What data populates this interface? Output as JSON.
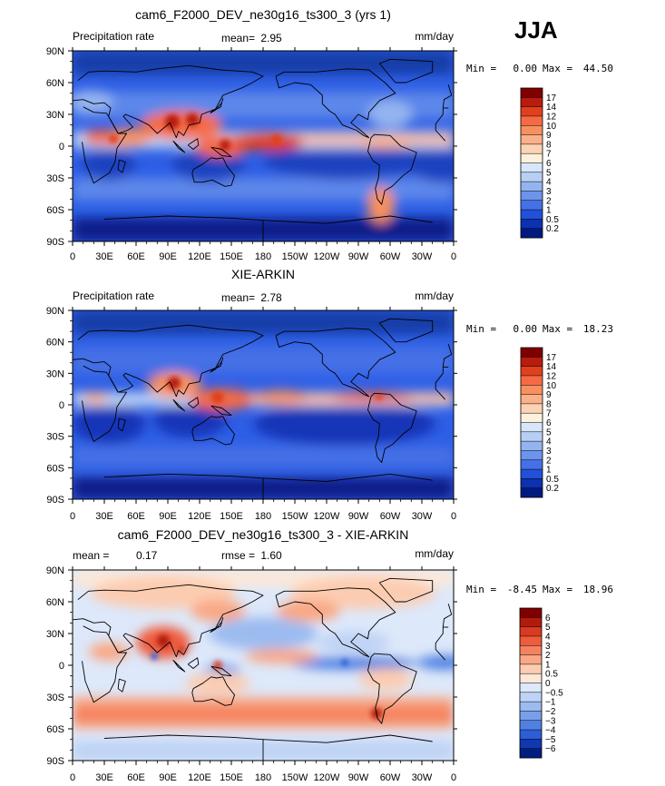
{
  "season": "JJA",
  "chart_data": [
    {
      "type": "heatmap",
      "title": "cam6_F2000_DEV_ne30g16_ts300_3 (yrs 1)",
      "left_label": "Precipitation rate",
      "stat1_label": "mean=",
      "stat1_value": "2.95",
      "stat2_label": "",
      "stat2_value": "",
      "units": "mm/day",
      "min_label": "Min =",
      "min_value": "0.00",
      "max_label": "Max =",
      "max_value": "44.50",
      "x_ticks": [
        "0",
        "30E",
        "60E",
        "90E",
        "120E",
        "150E",
        "180",
        "150W",
        "120W",
        "90W",
        "60W",
        "30W",
        "0"
      ],
      "y_ticks": [
        "90N",
        "60N",
        "30N",
        "0",
        "30S",
        "60S",
        "90S"
      ],
      "levels": [
        "17",
        "14",
        "12",
        "10",
        "9",
        "8",
        "7",
        "6",
        "5",
        "4",
        "3",
        "2",
        "1",
        "0.5",
        "0.2"
      ],
      "colors": [
        "#800000",
        "#b81c0c",
        "#e0401c",
        "#f56a45",
        "#f7905f",
        "#fab088",
        "#fcd2b4",
        "#fdf0dc",
        "#d7e6fa",
        "#b8cff5",
        "#94b4f0",
        "#6d93eb",
        "#4570e6",
        "#2250d8",
        "#0c32b0",
        "#001a80"
      ],
      "background": "#2d5ee5"
    },
    {
      "type": "heatmap",
      "title": "XIE-ARKIN",
      "left_label": "Precipitation rate",
      "stat1_label": "mean=",
      "stat1_value": "2.78",
      "stat2_label": "",
      "stat2_value": "",
      "units": "mm/day",
      "min_label": "Min =",
      "min_value": "0.00",
      "max_label": "Max =",
      "max_value": "18.23",
      "x_ticks": [
        "0",
        "30E",
        "60E",
        "90E",
        "120E",
        "150E",
        "180",
        "150W",
        "120W",
        "90W",
        "60W",
        "30W",
        "0"
      ],
      "y_ticks": [
        "90N",
        "60N",
        "30N",
        "0",
        "30S",
        "60S",
        "90S"
      ],
      "levels": [
        "17",
        "14",
        "12",
        "10",
        "9",
        "8",
        "7",
        "6",
        "5",
        "4",
        "3",
        "2",
        "1",
        "0.5",
        "0.2"
      ],
      "colors": [
        "#800000",
        "#b81c0c",
        "#e0401c",
        "#f56a45",
        "#f7905f",
        "#fab088",
        "#fcd2b4",
        "#fdf0dc",
        "#d7e6fa",
        "#b8cff5",
        "#94b4f0",
        "#6d93eb",
        "#4570e6",
        "#2250d8",
        "#0c32b0",
        "#001a80"
      ],
      "background": "#2d5ee5"
    },
    {
      "type": "heatmap",
      "title": "cam6_F2000_DEV_ne30g16_ts300_3 - XIE-ARKIN",
      "left_label": "",
      "stat1_label": "mean =",
      "stat1_value": "0.17",
      "stat2_label": "rmse =",
      "stat2_value": "1.60",
      "units": "mm/day",
      "min_label": "Min =",
      "min_value": "-8.45",
      "max_label": "Max =",
      "max_value": "18.96",
      "x_ticks": [
        "0",
        "30E",
        "60E",
        "90E",
        "120E",
        "150E",
        "180",
        "150W",
        "120W",
        "90W",
        "60W",
        "30W",
        "0"
      ],
      "y_ticks": [
        "90N",
        "60N",
        "30N",
        "0",
        "30S",
        "60S",
        "90S"
      ],
      "levels": [
        "6",
        "5",
        "4",
        "3",
        "2",
        "1",
        "0.5",
        "0",
        "−0.5",
        "−1",
        "−2",
        "−3",
        "−4",
        "−5",
        "−6"
      ],
      "colors": [
        "#800000",
        "#b01c0c",
        "#d83a22",
        "#ee5c3c",
        "#f5825f",
        "#f9a784",
        "#fcccb0",
        "#fde8d8",
        "#dde8fa",
        "#bed3f5",
        "#9cbbf0",
        "#78a0ea",
        "#5080e2",
        "#2c5ed6",
        "#1038b0",
        "#001e80"
      ],
      "background": "#dde8fa"
    }
  ]
}
